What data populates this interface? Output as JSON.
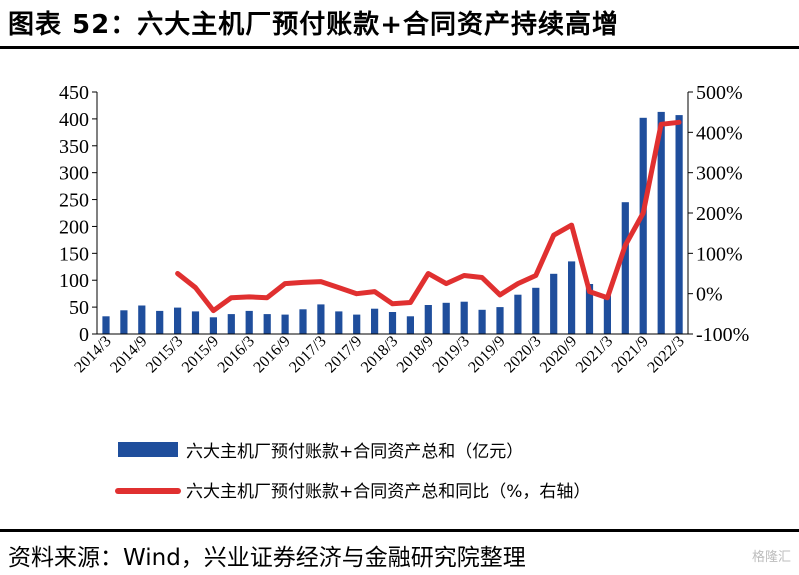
{
  "header": {
    "title": "图表 52：六大主机厂预付账款+合同资产持续高增"
  },
  "footer": {
    "source": "资料来源：Wind，兴业证券经济与金融研究院整理",
    "watermark": "格隆汇"
  },
  "chart_data": {
    "type": "bar",
    "categories": [
      "2014/3",
      "2014/6",
      "2014/9",
      "2014/12",
      "2015/3",
      "2015/6",
      "2015/9",
      "2015/12",
      "2016/3",
      "2016/6",
      "2016/9",
      "2016/12",
      "2017/3",
      "2017/6",
      "2017/9",
      "2017/12",
      "2018/3",
      "2018/6",
      "2018/9",
      "2018/12",
      "2019/3",
      "2019/6",
      "2019/9",
      "2019/12",
      "2020/3",
      "2020/6",
      "2020/9",
      "2020/12",
      "2021/3",
      "2021/6",
      "2021/9",
      "2021/12",
      "2022/3"
    ],
    "x_tick_labels": [
      "2014/3",
      "2014/9",
      "2015/3",
      "2015/9",
      "2016/3",
      "2016/9",
      "2017/3",
      "2017/9",
      "2018/3",
      "2018/9",
      "2019/3",
      "2019/9",
      "2020/3",
      "2020/9",
      "2021/3",
      "2021/9",
      "2022/3"
    ],
    "series": [
      {
        "name": "六大主机厂预付账款+合同资产总和（亿元）",
        "type": "bar",
        "axis": "left",
        "color": "#1f4e9c",
        "values": [
          33,
          44,
          53,
          43,
          49,
          42,
          31,
          37,
          43,
          37,
          36,
          46,
          55,
          42,
          36,
          47,
          41,
          33,
          54,
          58,
          60,
          45,
          50,
          73,
          86,
          112,
          135,
          93,
          72,
          245,
          402,
          413,
          407
        ]
      },
      {
        "name": "六大主机厂预付账款+合同资产总和同比（%，右轴）",
        "type": "line",
        "axis": "right",
        "color": "#e03030",
        "values": [
          null,
          null,
          null,
          null,
          50,
          15,
          -42,
          -10,
          -8,
          -10,
          25,
          28,
          30,
          15,
          0,
          5,
          -25,
          -22,
          50,
          25,
          45,
          40,
          -3,
          25,
          45,
          145,
          170,
          5,
          -10,
          120,
          200,
          420,
          425
        ]
      }
    ],
    "y_left": {
      "ticks": [
        0,
        50,
        100,
        150,
        200,
        250,
        300,
        350,
        400,
        450
      ],
      "ylim": [
        0,
        450
      ]
    },
    "y_right": {
      "ticks": [
        "-100%",
        "0%",
        "100%",
        "200%",
        "300%",
        "400%",
        "500%"
      ],
      "ylim": [
        -100,
        500
      ]
    },
    "grid": false,
    "legend_position": "bottom"
  }
}
